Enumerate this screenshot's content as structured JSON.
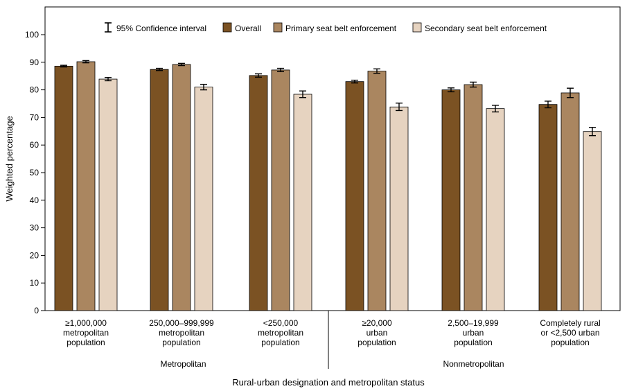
{
  "chart_data": {
    "type": "bar",
    "title": "",
    "xlabel": "Rural-urban designation and metropolitan status",
    "ylabel": "Weighted percentage",
    "ylim": [
      0,
      100
    ],
    "yticks": [
      0,
      10,
      20,
      30,
      40,
      50,
      60,
      70,
      80,
      90,
      100
    ],
    "grid": false,
    "legend_position": "top",
    "ci_legend_label": "95% Confidence interval",
    "categories": [
      [
        "≥1,000,000",
        "metropolitan",
        "population"
      ],
      [
        "250,000–999,999",
        "metropolitan",
        "population"
      ],
      [
        "<250,000",
        "metropolitan",
        "population"
      ],
      [
        "≥20,000",
        "urban",
        "population"
      ],
      [
        "2,500–19,999",
        "urban",
        "population"
      ],
      [
        "Completely rural",
        "or <2,500 urban",
        "population"
      ]
    ],
    "groups": [
      {
        "label": "Metropolitan",
        "categories": [
          0,
          1,
          2
        ]
      },
      {
        "label": "Nonmetropolitan",
        "categories": [
          3,
          4,
          5
        ]
      }
    ],
    "series": [
      {
        "name": "Overall",
        "color": "#7b5223",
        "values": [
          88.6,
          87.4,
          85.2,
          83.0,
          80.0,
          74.7
        ],
        "ci_low": [
          88.3,
          87.0,
          84.6,
          82.5,
          79.3,
          73.5
        ],
        "ci_high": [
          88.9,
          87.8,
          85.8,
          83.5,
          80.7,
          75.9
        ]
      },
      {
        "name": "Primary seat belt enforcement",
        "color": "#aa8660",
        "values": [
          90.2,
          89.2,
          87.2,
          86.8,
          81.9,
          78.9
        ],
        "ci_low": [
          89.8,
          88.8,
          86.6,
          86.0,
          81.0,
          77.2
        ],
        "ci_high": [
          90.6,
          89.6,
          87.8,
          87.6,
          82.8,
          80.6
        ]
      },
      {
        "name": "Secondary seat belt enforcement",
        "color": "#e6d3c0",
        "values": [
          83.9,
          81.0,
          78.4,
          73.8,
          73.2,
          64.9
        ],
        "ci_low": [
          83.3,
          80.0,
          77.2,
          72.5,
          72.0,
          63.4
        ],
        "ci_high": [
          84.5,
          82.0,
          79.6,
          75.2,
          74.4,
          66.4
        ]
      }
    ]
  }
}
